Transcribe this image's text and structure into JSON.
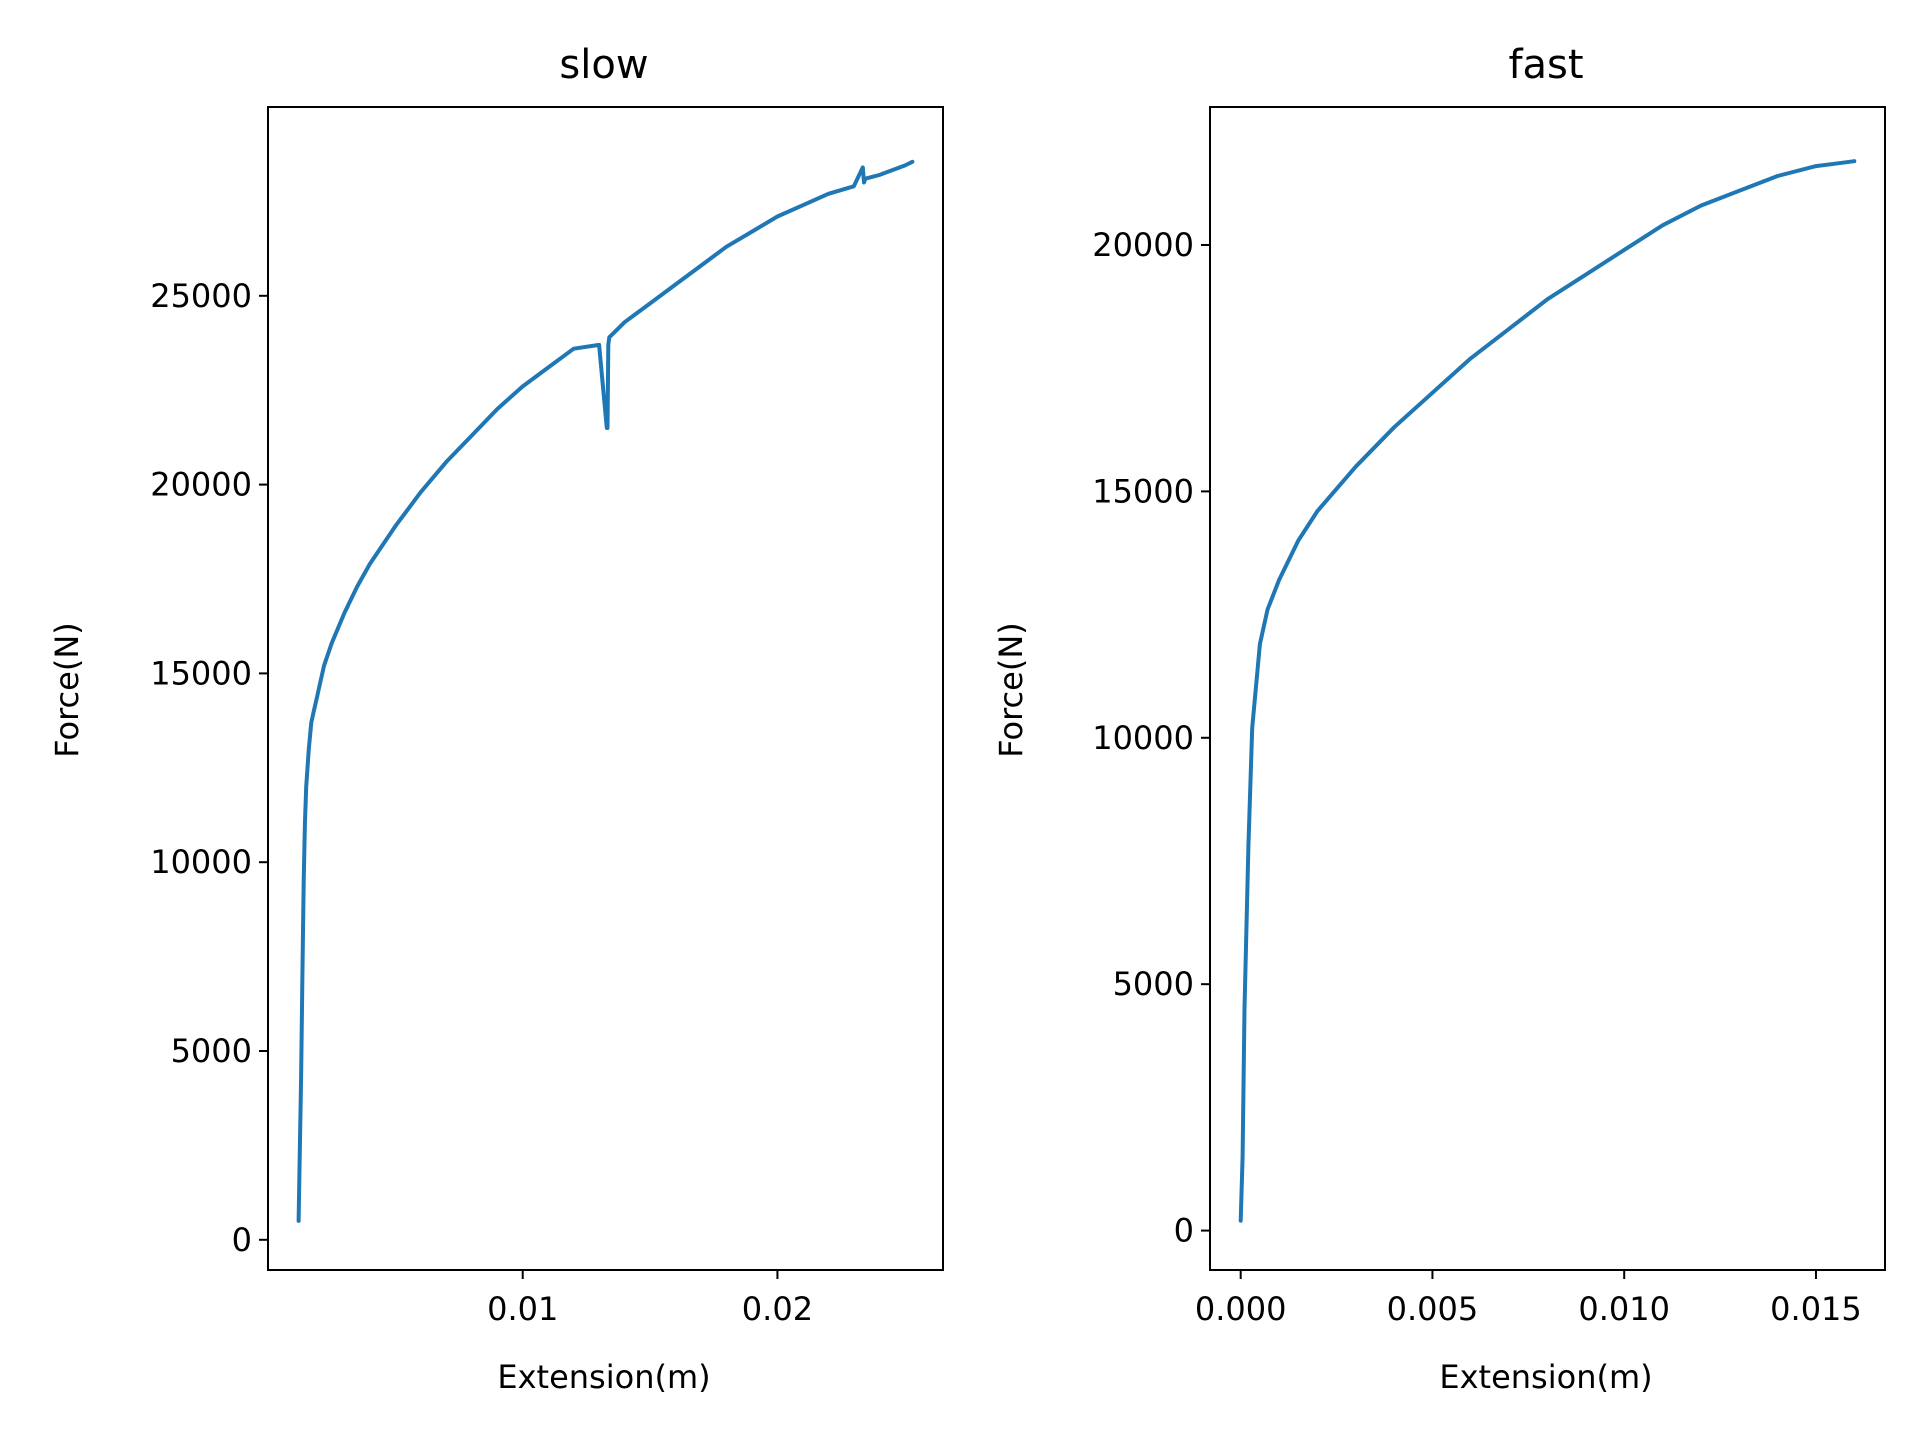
{
  "chart_data": [
    {
      "type": "line",
      "title": "slow",
      "xlabel": "Extension(m)",
      "ylabel": "Force(N)",
      "xlim": [
        0.0,
        0.0265
      ],
      "ylim": [
        -800,
        30000
      ],
      "xticks": [
        0.01,
        0.02
      ],
      "xtick_labels": [
        "0.01",
        "0.02"
      ],
      "yticks": [
        0,
        5000,
        10000,
        15000,
        20000,
        25000
      ],
      "ytick_labels": [
        "0",
        "5000",
        "10000",
        "15000",
        "20000",
        "25000"
      ],
      "grid": false,
      "color": "#1f77b4",
      "series": [
        {
          "x": [
            0.0012,
            0.0013,
            0.00135,
            0.0014,
            0.00145,
            0.0015,
            0.0016,
            0.0017,
            0.0018,
            0.0019,
            0.002,
            0.0022,
            0.0025,
            0.003,
            0.0035,
            0.004,
            0.005,
            0.006,
            0.007,
            0.008,
            0.009,
            0.01,
            0.011,
            0.012,
            0.013,
            0.0133,
            0.01333,
            0.01336,
            0.0134,
            0.014,
            0.015,
            0.016,
            0.017,
            0.018,
            0.019,
            0.02,
            0.021,
            0.022,
            0.023,
            0.02335,
            0.0234,
            0.02345,
            0.024,
            0.025,
            0.0253
          ],
          "y": [
            500,
            4300,
            7000,
            9500,
            11000,
            12000,
            13000,
            13700,
            14000,
            14300,
            14600,
            15200,
            15800,
            16600,
            17300,
            17900,
            18900,
            19800,
            20600,
            21300,
            22000,
            22600,
            23100,
            23600,
            23700,
            21500,
            21500,
            23700,
            23900,
            24300,
            24800,
            25300,
            25800,
            26300,
            26700,
            27100,
            27400,
            27700,
            27900,
            28400,
            28000,
            28100,
            28200,
            28450,
            28550
          ]
        }
      ]
    },
    {
      "type": "line",
      "title": "fast",
      "xlabel": "Extension(m)",
      "ylabel": "Force(N)",
      "xlim": [
        -0.0008,
        0.0168
      ],
      "ylim": [
        -800,
        22800
      ],
      "xticks": [
        0.0,
        0.005,
        0.01,
        0.015
      ],
      "xtick_labels": [
        "0.000",
        "0.005",
        "0.010",
        "0.015"
      ],
      "yticks": [
        0,
        5000,
        10000,
        15000,
        20000
      ],
      "ytick_labels": [
        "0",
        "5000",
        "10000",
        "15000",
        "20000"
      ],
      "grid": false,
      "color": "#1f77b4",
      "series": [
        {
          "x": [
            0.0,
            5e-05,
            0.0001,
            0.0002,
            0.0003,
            0.0005,
            0.0007,
            0.001,
            0.0015,
            0.002,
            0.003,
            0.004,
            0.005,
            0.006,
            0.007,
            0.008,
            0.009,
            0.01,
            0.011,
            0.012,
            0.013,
            0.014,
            0.015,
            0.0155,
            0.016
          ],
          "y": [
            200,
            1500,
            4500,
            7800,
            10200,
            11900,
            12600,
            13200,
            14000,
            14600,
            15500,
            16300,
            17000,
            17700,
            18300,
            18900,
            19400,
            19900,
            20400,
            20800,
            21100,
            21400,
            21600,
            21650,
            21700
          ]
        }
      ]
    }
  ]
}
